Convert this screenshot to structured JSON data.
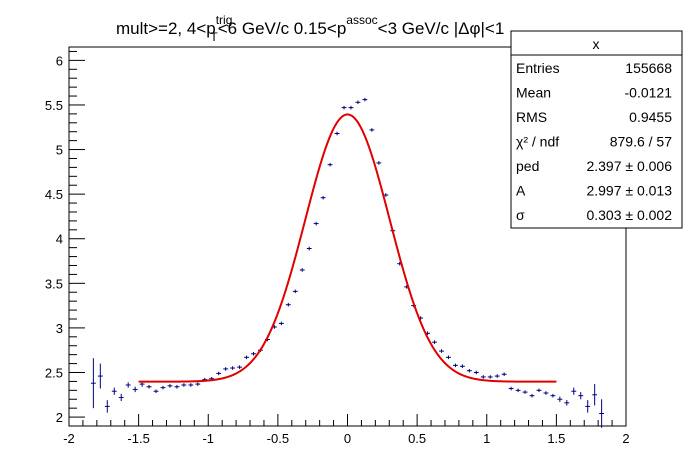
{
  "chart_data": {
    "type": "scatter",
    "title_parts": [
      "mult>=2, 4<p",
      "trig",
      "T",
      "<6 GeV/c 0.15<p",
      "assoc",
      "<3 GeV/c |",
      "Δφ",
      "|<1"
    ],
    "xlim": [
      -2,
      2
    ],
    "ylim": [
      1.9,
      6.15
    ],
    "x_ticks": [
      -2,
      -1.5,
      -1,
      -0.5,
      0,
      0.5,
      1,
      1.5,
      2
    ],
    "x_tick_labels": [
      "-2",
      "-1.5",
      "-1",
      "-0.5",
      "0",
      "0.5",
      "1",
      "1.5",
      "2"
    ],
    "y_ticks": [
      2,
      2.5,
      3,
      3.5,
      4,
      4.5,
      5,
      5.5,
      6
    ],
    "y_tick_labels": [
      "2",
      "2.5",
      "3",
      "3.5",
      "4",
      "4.5",
      "5",
      "5.5",
      "6"
    ],
    "grid": false,
    "marker_color": "#000080",
    "fit_color": "#e00000",
    "fit": {
      "name": "gaussian",
      "ped": 2.397,
      "A": 2.997,
      "sigma": 0.303,
      "range": [
        -1.5,
        1.5
      ]
    },
    "points": [
      {
        "x": -1.825,
        "y": 2.38,
        "err": 0.28
      },
      {
        "x": -1.775,
        "y": 2.46,
        "err": 0.14
      },
      {
        "x": -1.725,
        "y": 2.12,
        "err": 0.07
      },
      {
        "x": -1.675,
        "y": 2.29,
        "err": 0.04
      },
      {
        "x": -1.625,
        "y": 2.22,
        "err": 0.04
      },
      {
        "x": -1.575,
        "y": 2.36,
        "err": 0.03
      },
      {
        "x": -1.525,
        "y": 2.31,
        "err": 0.03
      },
      {
        "x": -1.475,
        "y": 2.37,
        "err": 0.03
      },
      {
        "x": -1.425,
        "y": 2.34,
        "err": 0.02
      },
      {
        "x": -1.375,
        "y": 2.29,
        "err": 0.02
      },
      {
        "x": -1.325,
        "y": 2.33,
        "err": 0.02
      },
      {
        "x": -1.275,
        "y": 2.35,
        "err": 0.02
      },
      {
        "x": -1.225,
        "y": 2.34,
        "err": 0.02
      },
      {
        "x": -1.175,
        "y": 2.36,
        "err": 0.02
      },
      {
        "x": -1.125,
        "y": 2.36,
        "err": 0.02
      },
      {
        "x": -1.075,
        "y": 2.37,
        "err": 0.02
      },
      {
        "x": -1.025,
        "y": 2.42,
        "err": 0.02
      },
      {
        "x": -0.975,
        "y": 2.43,
        "err": 0.02
      },
      {
        "x": -0.925,
        "y": 2.49,
        "err": 0.02
      },
      {
        "x": -0.875,
        "y": 2.54,
        "err": 0.02
      },
      {
        "x": -0.825,
        "y": 2.55,
        "err": 0.02
      },
      {
        "x": -0.775,
        "y": 2.56,
        "err": 0.02
      },
      {
        "x": -0.725,
        "y": 2.67,
        "err": 0.02
      },
      {
        "x": -0.675,
        "y": 2.71,
        "err": 0.02
      },
      {
        "x": -0.625,
        "y": 2.75,
        "err": 0.02
      },
      {
        "x": -0.575,
        "y": 2.87,
        "err": 0.02
      },
      {
        "x": -0.525,
        "y": 3.01,
        "err": 0.02
      },
      {
        "x": -0.475,
        "y": 3.05,
        "err": 0.02
      },
      {
        "x": -0.425,
        "y": 3.26,
        "err": 0.02
      },
      {
        "x": -0.375,
        "y": 3.41,
        "err": 0.02
      },
      {
        "x": -0.325,
        "y": 3.65,
        "err": 0.02
      },
      {
        "x": -0.275,
        "y": 3.89,
        "err": 0.02
      },
      {
        "x": -0.225,
        "y": 4.17,
        "err": 0.02
      },
      {
        "x": -0.175,
        "y": 4.46,
        "err": 0.02
      },
      {
        "x": -0.125,
        "y": 4.83,
        "err": 0.02
      },
      {
        "x": -0.075,
        "y": 5.18,
        "err": 0.02
      },
      {
        "x": -0.025,
        "y": 5.47,
        "err": 0.02
      },
      {
        "x": 0.025,
        "y": 5.47,
        "err": 0.02
      },
      {
        "x": 0.075,
        "y": 5.53,
        "err": 0.02
      },
      {
        "x": 0.125,
        "y": 5.56,
        "err": 0.02
      },
      {
        "x": 0.175,
        "y": 5.22,
        "err": 0.02
      },
      {
        "x": 0.225,
        "y": 4.85,
        "err": 0.02
      },
      {
        "x": 0.275,
        "y": 4.49,
        "err": 0.02
      },
      {
        "x": 0.325,
        "y": 4.09,
        "err": 0.02
      },
      {
        "x": 0.375,
        "y": 3.72,
        "err": 0.02
      },
      {
        "x": 0.425,
        "y": 3.46,
        "err": 0.02
      },
      {
        "x": 0.475,
        "y": 3.25,
        "err": 0.02
      },
      {
        "x": 0.525,
        "y": 3.11,
        "err": 0.02
      },
      {
        "x": 0.575,
        "y": 2.94,
        "err": 0.02
      },
      {
        "x": 0.625,
        "y": 2.84,
        "err": 0.02
      },
      {
        "x": 0.675,
        "y": 2.74,
        "err": 0.02
      },
      {
        "x": 0.725,
        "y": 2.67,
        "err": 0.02
      },
      {
        "x": 0.775,
        "y": 2.58,
        "err": 0.02
      },
      {
        "x": 0.825,
        "y": 2.57,
        "err": 0.02
      },
      {
        "x": 0.875,
        "y": 2.52,
        "err": 0.02
      },
      {
        "x": 0.925,
        "y": 2.5,
        "err": 0.02
      },
      {
        "x": 0.975,
        "y": 2.45,
        "err": 0.02
      },
      {
        "x": 1.025,
        "y": 2.45,
        "err": 0.02
      },
      {
        "x": 1.075,
        "y": 2.46,
        "err": 0.02
      },
      {
        "x": 1.125,
        "y": 2.48,
        "err": 0.02
      },
      {
        "x": 1.175,
        "y": 2.32,
        "err": 0.02
      },
      {
        "x": 1.225,
        "y": 2.3,
        "err": 0.02
      },
      {
        "x": 1.275,
        "y": 2.28,
        "err": 0.02
      },
      {
        "x": 1.325,
        "y": 2.24,
        "err": 0.02
      },
      {
        "x": 1.375,
        "y": 2.3,
        "err": 0.02
      },
      {
        "x": 1.425,
        "y": 2.27,
        "err": 0.02
      },
      {
        "x": 1.475,
        "y": 2.24,
        "err": 0.02
      },
      {
        "x": 1.525,
        "y": 2.2,
        "err": 0.03
      },
      {
        "x": 1.575,
        "y": 2.16,
        "err": 0.03
      },
      {
        "x": 1.625,
        "y": 2.29,
        "err": 0.04
      },
      {
        "x": 1.675,
        "y": 2.24,
        "err": 0.04
      },
      {
        "x": 1.725,
        "y": 2.12,
        "err": 0.07
      },
      {
        "x": 1.775,
        "y": 2.25,
        "err": 0.12
      },
      {
        "x": 1.825,
        "y": 2.04,
        "err": 0.16
      }
    ]
  },
  "stats_box": {
    "title": "x",
    "rows": [
      {
        "label": "Entries",
        "value": "155668"
      },
      {
        "label": "Mean",
        "value": "-0.0121"
      },
      {
        "label": "RMS",
        "value": "0.9455"
      },
      {
        "label": "χ² / ndf",
        "value": "879.6 / 57"
      },
      {
        "label": "ped",
        "value": "2.397 ± 0.006"
      },
      {
        "label": "A",
        "value": "2.997 ± 0.013"
      },
      {
        "label": "σ",
        "value": "0.303 ± 0.002"
      }
    ]
  }
}
